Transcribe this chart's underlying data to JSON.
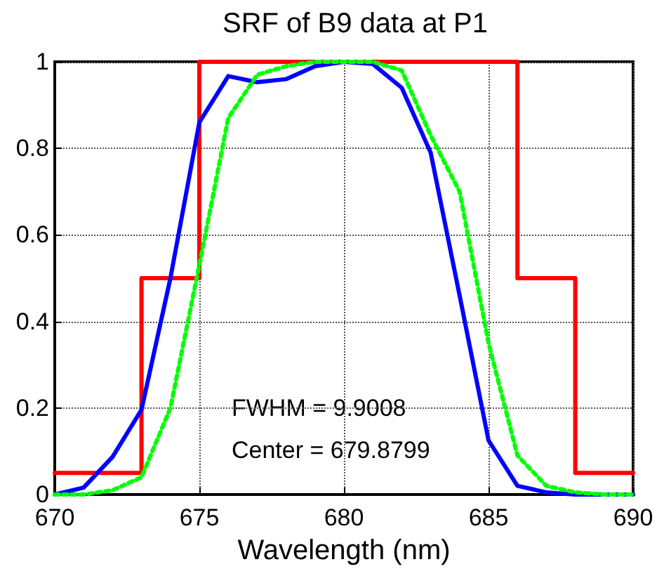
{
  "chart_data": {
    "type": "line",
    "title": "SRF of B9 data at P1",
    "xlabel": "Wavelength (nm)",
    "xlim": [
      670,
      690
    ],
    "xticks": [
      670,
      675,
      680,
      685,
      690
    ],
    "ylim": [
      0,
      1
    ],
    "yticks": [
      0,
      0.2,
      0.4,
      0.6,
      0.8,
      1
    ],
    "grid": true,
    "marker": "none",
    "annotations": [
      "FWHM = 9.9008",
      "Center = 679.8799"
    ],
    "series": [
      {
        "type": "step",
        "color": "#ff0000",
        "line_style": "solid",
        "x": [
          670,
          673,
          675,
          686,
          688,
          690
        ],
        "values": [
          0.05,
          0.5,
          1,
          0.5,
          0.05,
          0.05
        ]
      },
      {
        "color": "#0000ff",
        "line_style": "solid",
        "x": [
          670,
          671,
          672,
          673,
          674,
          675,
          676,
          677,
          678,
          679,
          680,
          681,
          682,
          683,
          684,
          685,
          686,
          687,
          688,
          689,
          690
        ],
        "values": [
          0.0,
          0.016,
          0.087,
          0.196,
          0.5,
          0.86,
          0.967,
          0.953,
          0.96,
          0.99,
          1.0,
          0.995,
          0.94,
          0.79,
          0.46,
          0.125,
          0.02,
          0.005,
          0,
          0,
          0
        ]
      },
      {
        "color": "#00ff00",
        "line_style": "dotted",
        "x": [
          670,
          671,
          672,
          673,
          674,
          675,
          676,
          677,
          678,
          679,
          680,
          681,
          682,
          683,
          684,
          685,
          686,
          687,
          688,
          689,
          690
        ],
        "values": [
          0,
          0,
          0.01,
          0.04,
          0.2,
          0.53,
          0.87,
          0.97,
          0.99,
          1,
          1,
          1,
          0.98,
          0.83,
          0.7,
          0.35,
          0.09,
          0.02,
          0.005,
          0,
          0
        ]
      }
    ]
  }
}
